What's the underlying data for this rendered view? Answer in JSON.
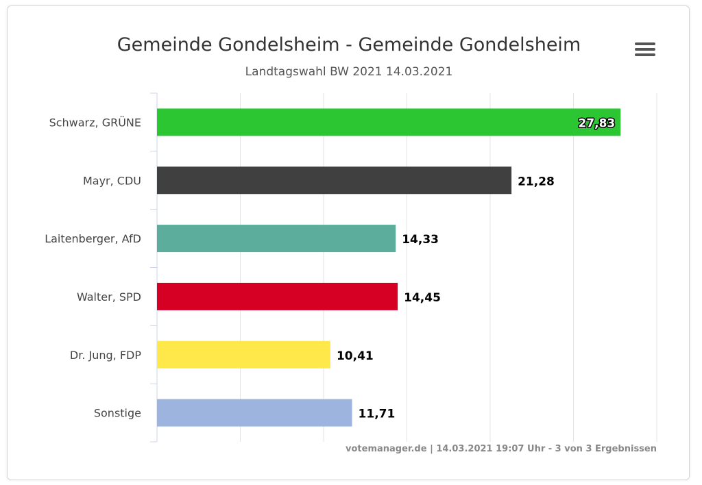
{
  "chart_data": {
    "type": "bar",
    "orientation": "horizontal",
    "title": "Gemeinde Gondelsheim - Gemeinde Gondelsheim",
    "subtitle": "Landtagswahl BW 2021 14.03.2021",
    "categories": [
      "Schwarz, GRÜNE",
      "Mayr, CDU",
      "Laitenberger, AfD",
      "Walter, SPD",
      "Dr. Jung, FDP",
      "Sonstige"
    ],
    "values": [
      27.83,
      21.28,
      14.33,
      14.45,
      10.41,
      11.71
    ],
    "data_labels": [
      "27,83",
      "21,28",
      "14,33",
      "14,45",
      "10,41",
      "11,71"
    ],
    "colors": [
      "#2bc632",
      "#404040",
      "#5dad9c",
      "#d50024",
      "#ffe94a",
      "#9db5de"
    ],
    "xlim": [
      0,
      30
    ],
    "grid_step": 5,
    "grid": true,
    "legend": false
  },
  "footer": "votemanager.de | 14.03.2021 19:07 Uhr - 3 von 3 Ergebnissen",
  "menu_icon": "hamburger-menu-icon"
}
